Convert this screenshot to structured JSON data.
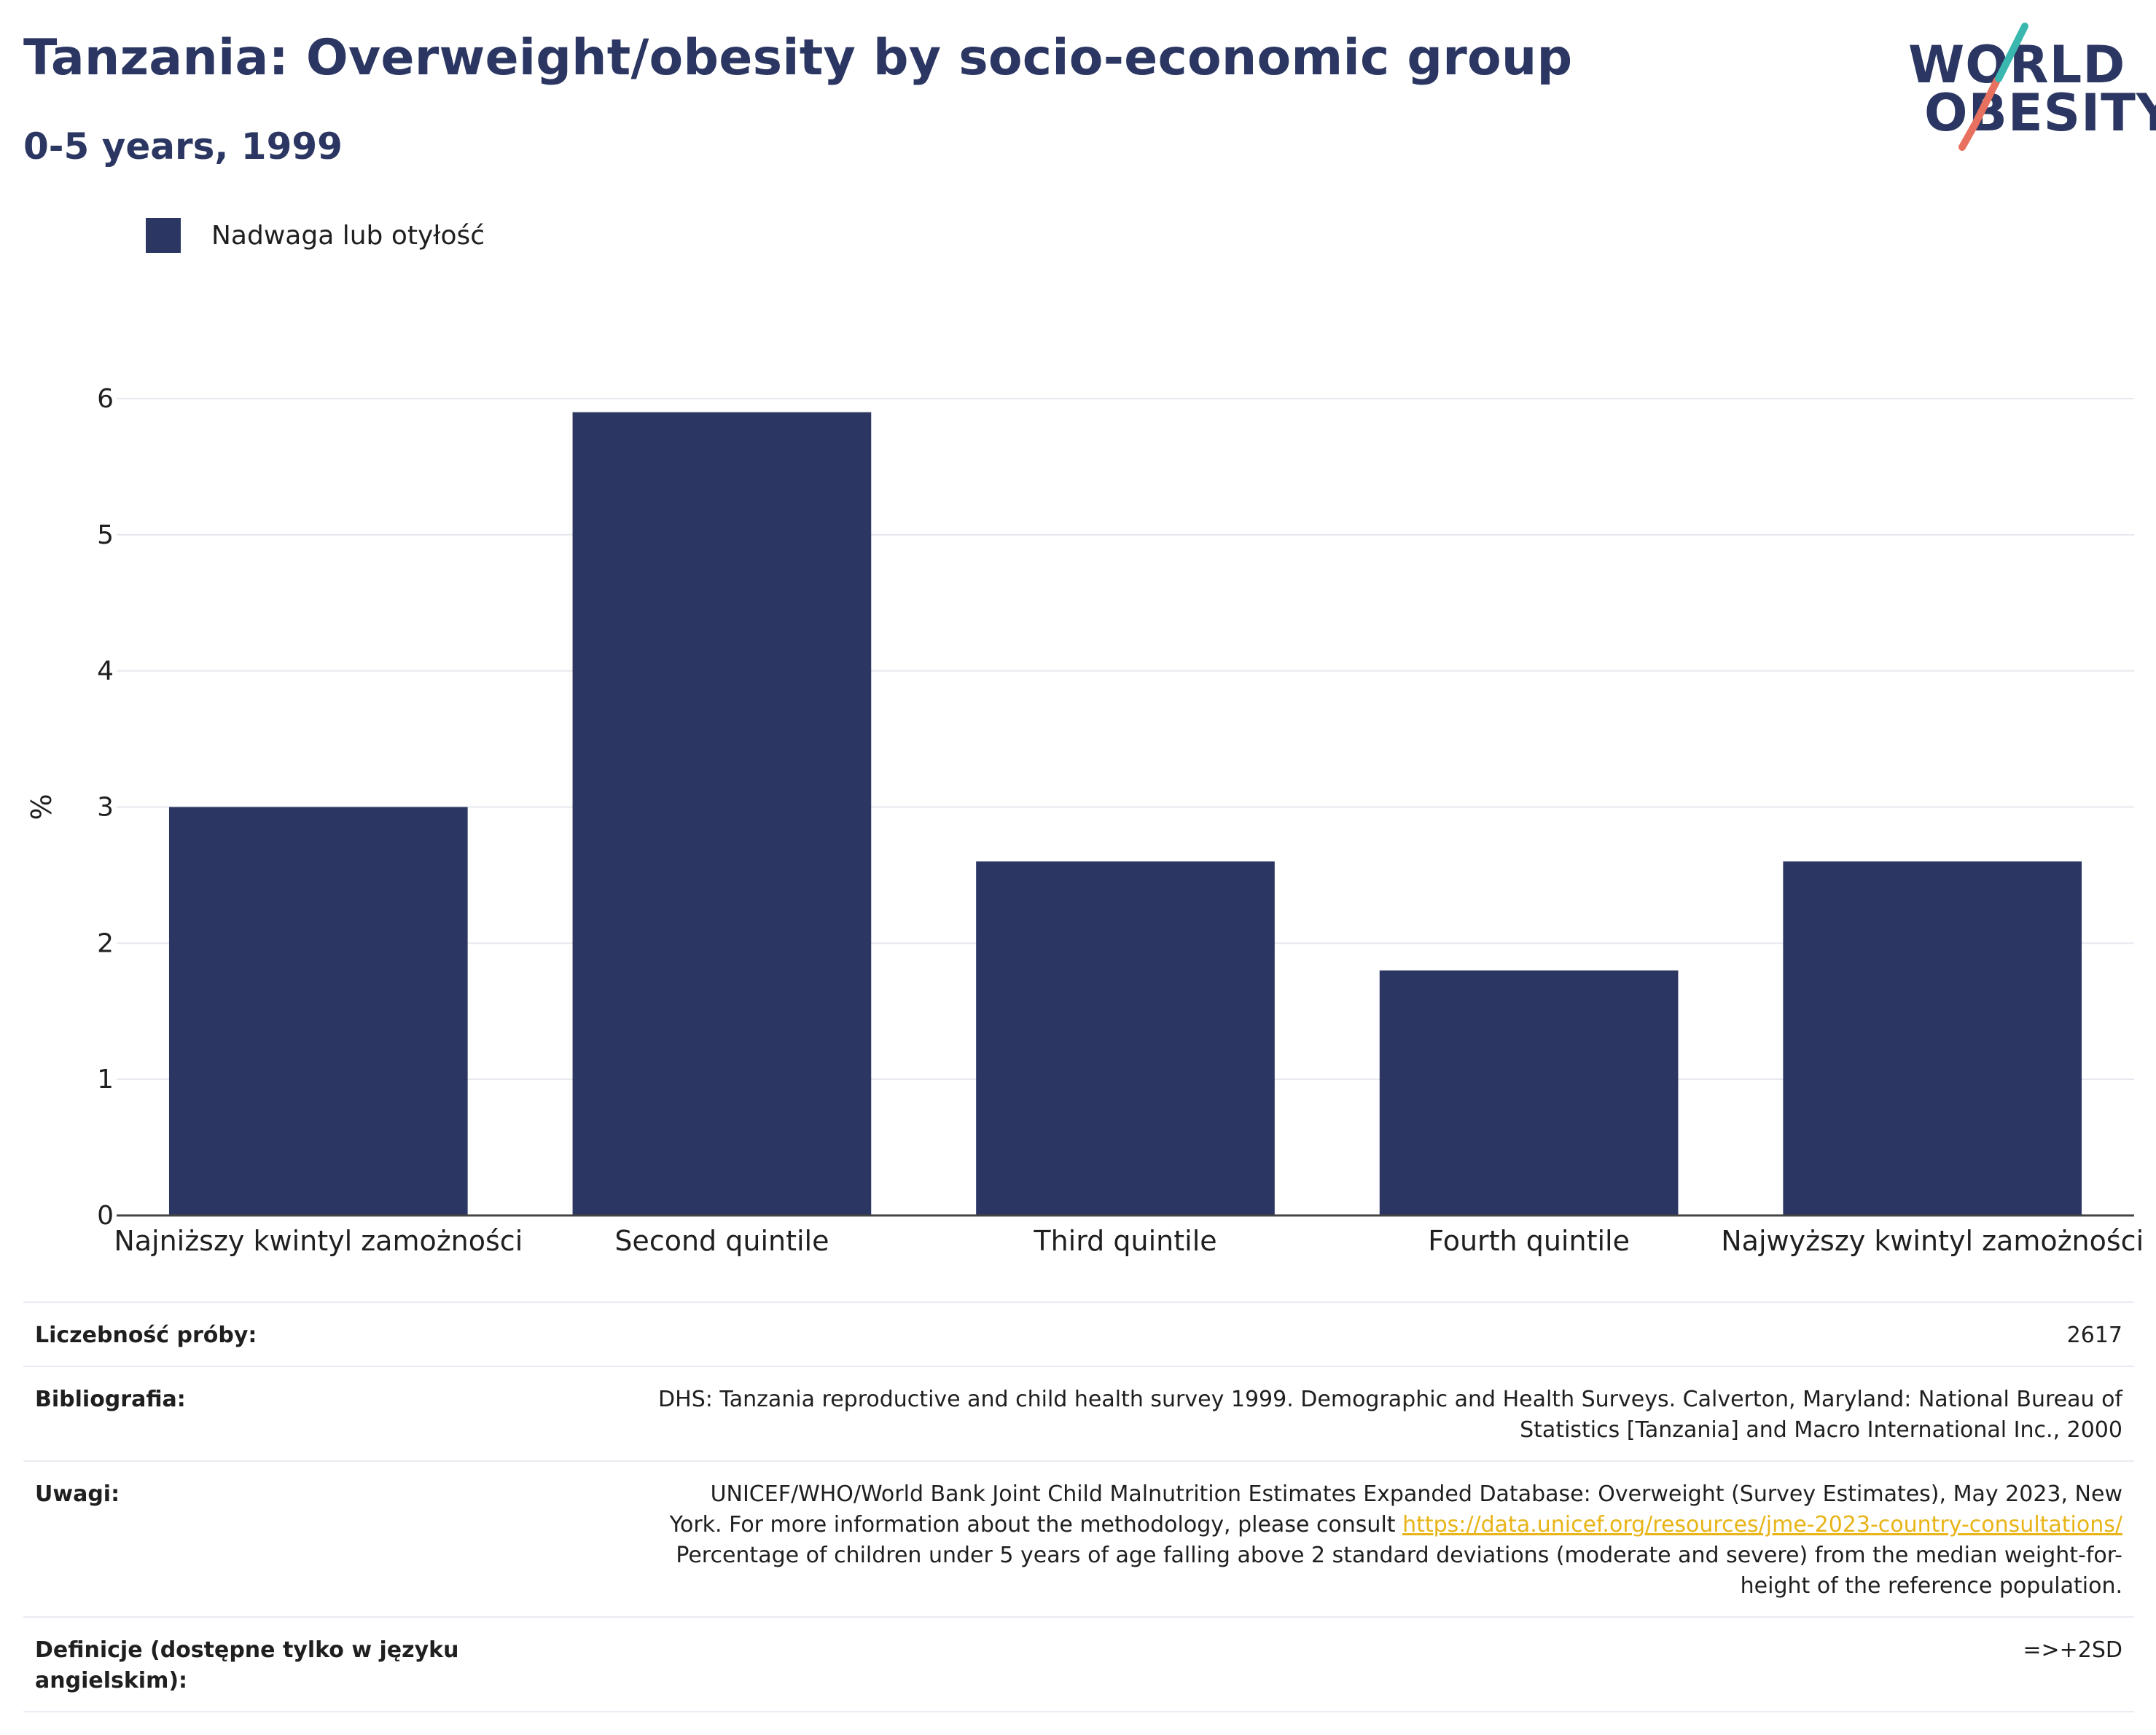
{
  "header": {
    "title": "Tanzania: Overweight/obesity by socio-economic group",
    "subtitle": "0-5 years, 1999"
  },
  "logo": {
    "line1": "WORLD",
    "line2": "OBESITY",
    "colors": {
      "teal": "#3ab8b0",
      "coral": "#e8705f",
      "navy": "#2b3762"
    }
  },
  "legend": {
    "label": "Nadwaga lub otyłość",
    "color": "#2b3762"
  },
  "chart_data": {
    "type": "bar",
    "categories": [
      "Najniższy kwintyl zamożności",
      "Second quintile",
      "Third quintile",
      "Fourth quintile",
      "Najwyższy kwintyl zamożności"
    ],
    "series": [
      {
        "name": "Nadwaga lub otyłość",
        "values": [
          3.0,
          5.9,
          2.6,
          1.8,
          2.6
        ],
        "color": "#2b3762"
      }
    ],
    "ylabel": "%",
    "ylim": [
      0,
      6
    ],
    "yticks": [
      0,
      1,
      2,
      3,
      4,
      5,
      6
    ],
    "grid": true,
    "legend_position": "top-left"
  },
  "info": {
    "sample_size": {
      "label": "Liczebność próby:",
      "value": "2617"
    },
    "bibliography": {
      "label": "Bibliografia:",
      "line1": "DHS: Tanzania reproductive and child health survey 1999. Demographic and Health Surveys. Calverton, Maryland: National Bureau of",
      "line2": "Statistics [Tanzania] and Macro International Inc., 2000"
    },
    "notes": {
      "label": "Uwagi:",
      "line1": "UNICEF/WHO/World Bank Joint Child Malnutrition Estimates Expanded Database: Overweight (Survey Estimates), May 2023, New",
      "line2_prefix": "York. For more information about the methodology, please consult",
      "link": "https://data.unicef.org/resources/jme-2023-country-consultations/",
      "line3": "Percentage of children under 5 years of age falling above 2 standard deviations (moderate and severe) from the median weight-for-",
      "line4": "height of the reference population."
    },
    "definitions": {
      "label": "Definicje (dostępne tylko w języku angielskim):",
      "value": "=>+2SD"
    }
  }
}
